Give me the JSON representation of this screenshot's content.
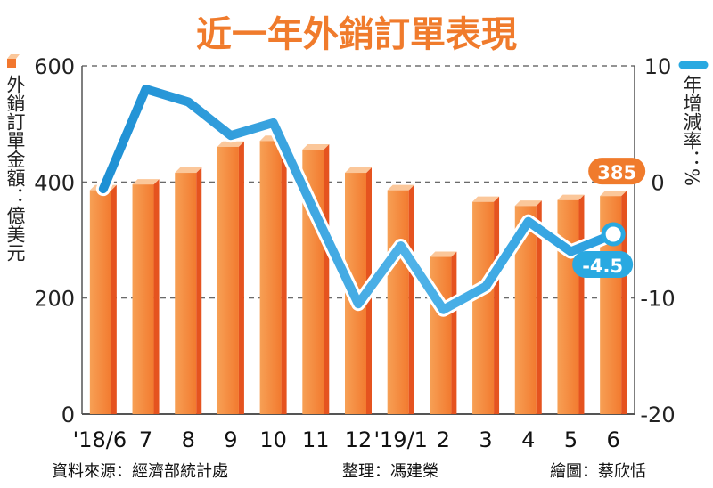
{
  "chart_data": {
    "type": "bar",
    "title": "近一年外銷訂單表現",
    "categories": [
      "'18/6",
      "7",
      "8",
      "9",
      "10",
      "11",
      "12",
      "'19/1",
      "2",
      "3",
      "4",
      "5",
      "6"
    ],
    "series": [
      {
        "name": "外銷訂單金額：億美元",
        "type": "bar",
        "axis": "left",
        "values": [
          395,
          405,
          425,
          470,
          480,
          465,
          425,
          395,
          280,
          375,
          368,
          378,
          385
        ]
      },
      {
        "name": "年增減率：%",
        "type": "line",
        "axis": "right",
        "values": [
          -0.6,
          8.0,
          6.9,
          4.0,
          5.1,
          -2.8,
          -10.5,
          -5.5,
          -11.0,
          -9.0,
          -3.4,
          -6.0,
          -4.5
        ]
      }
    ],
    "ylabel_left": "外銷訂單金額：億美元",
    "ylabel_right": "年增減率：%",
    "ylim_left": [
      0,
      600
    ],
    "ylim_right": [
      -20,
      10
    ],
    "yticks_left": [
      "0",
      "200",
      "400",
      "600"
    ],
    "yticks_right": [
      "-20",
      "-10",
      "0",
      "10"
    ],
    "annotations": {
      "bar_last": "385",
      "line_last": "-4.5"
    },
    "grid": true,
    "colors": {
      "bar_front": "#f2772e",
      "bar_side": "#e5531f",
      "bar_top": "#fbc79a",
      "line": "#29a9e1",
      "title": "#f07b2c"
    }
  },
  "footer": {
    "source": "資料來源：經濟部統計處",
    "editor": "整理：馮建榮",
    "artist": "繪圖：蔡欣恬"
  }
}
